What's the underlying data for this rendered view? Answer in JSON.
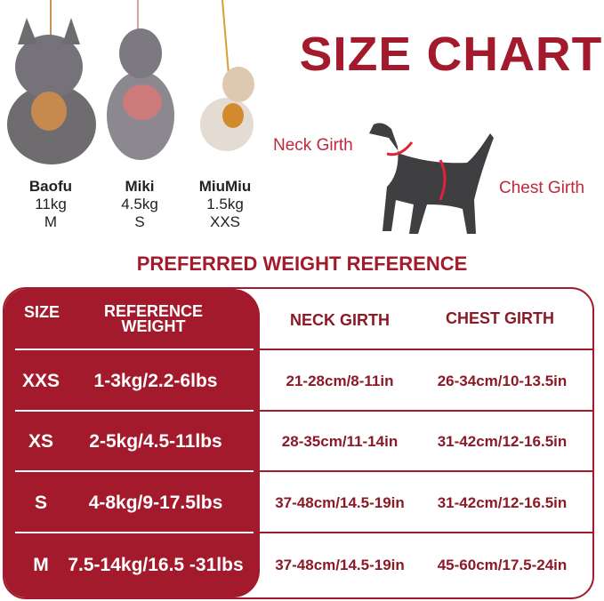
{
  "title": "SIZE CHART",
  "dogs": [
    {
      "name": "Baofu",
      "weight": "11kg",
      "size": "M"
    },
    {
      "name": "Miki",
      "weight": "4.5kg",
      "size": "S"
    },
    {
      "name": "MiuMiu",
      "weight": "1.5kg",
      "size": "XXS"
    }
  ],
  "diagram": {
    "neck_label": "Neck Girth",
    "chest_label": "Chest Girth"
  },
  "subtitle": "PREFERRED WEIGHT REFERENCE",
  "table": {
    "headers": {
      "size": "SIZE",
      "weight": "REFERENCE WEIGHT",
      "neck": "NECK GIRTH",
      "chest": "CHEST GIRTH"
    },
    "rows": [
      {
        "size": "XXS",
        "weight": "1-3kg/2.2-6lbs",
        "neck": "21-28cm/8-11in",
        "chest": "26-34cm/10-13.5in"
      },
      {
        "size": "XS",
        "weight": "2-5kg/4.5-11lbs",
        "neck": "28-35cm/11-14in",
        "chest": "31-42cm/12-16.5in"
      },
      {
        "size": "S",
        "weight": "4-8kg/9-17.5lbs",
        "neck": "37-48cm/14.5-19in",
        "chest": "31-42cm/12-16.5in"
      },
      {
        "size": "M",
        "weight": "7.5-14kg/16.5 -31lbs",
        "neck": "37-48cm/14.5-19in",
        "chest": "45-60cm/17.5-24in"
      }
    ]
  },
  "colors": {
    "brand": "#a31a2c",
    "girth_line": "#e0223a",
    "dog_silhouette": "#3f3f41"
  }
}
